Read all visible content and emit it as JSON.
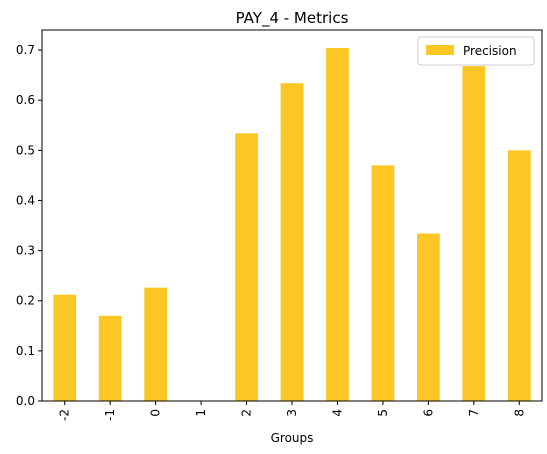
{
  "chart_data": {
    "type": "bar",
    "title": "PAY_4 - Metrics",
    "xlabel": "Groups",
    "ylabel": "",
    "categories": [
      "-2",
      "-1",
      "0",
      "1",
      "2",
      "3",
      "4",
      "5",
      "6",
      "7",
      "8"
    ],
    "series": [
      {
        "name": "Precision",
        "color": "#fcc725",
        "values": [
          0.212,
          0.17,
          0.226,
          0.0,
          0.534,
          0.634,
          0.704,
          0.47,
          0.334,
          0.668,
          0.5
        ]
      }
    ],
    "ylim": [
      0,
      0.74
    ],
    "yticks": [
      "0.0",
      "0.1",
      "0.2",
      "0.3",
      "0.4",
      "0.5",
      "0.6",
      "0.7"
    ],
    "ytick_values": [
      0.0,
      0.1,
      0.2,
      0.3,
      0.4,
      0.5,
      0.6,
      0.7
    ],
    "grid": false,
    "legend_position": "top-right",
    "xtick_rotation": "vertical"
  }
}
